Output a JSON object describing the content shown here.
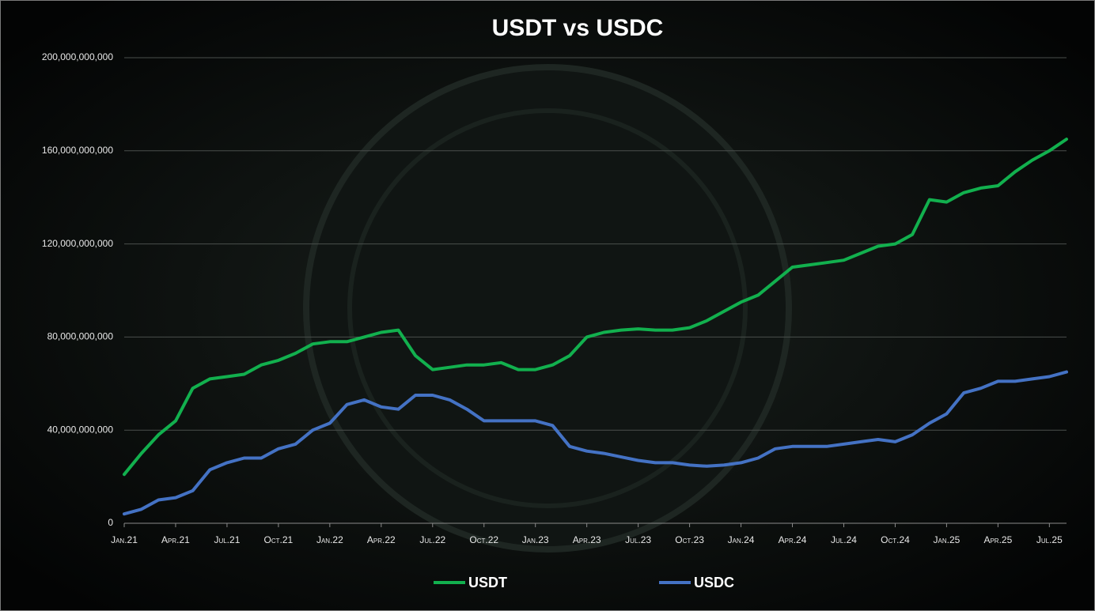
{
  "chart_data": {
    "type": "line",
    "title": "USDT  vs  USDC",
    "categories": [
      "Jan.21",
      null,
      null,
      "Apr.21",
      null,
      null,
      "Jul.21",
      null,
      null,
      "Oct.21",
      null,
      null,
      "Jan.22",
      null,
      null,
      "Apr.22",
      null,
      null,
      "Jul.22",
      null,
      null,
      "Oct.22",
      null,
      null,
      "Jan.23",
      null,
      null,
      "Apr.23",
      null,
      null,
      "Jul.23",
      null,
      null,
      "Oct.23",
      null,
      null,
      "Jan.24",
      null,
      null,
      "Apr.24",
      null,
      null,
      "Jul.24",
      null,
      null,
      "Oct.24",
      null,
      null,
      "Jan.25",
      null,
      null,
      "Apr.25",
      null,
      null,
      "Jul.25",
      null
    ],
    "series": [
      {
        "name": "USDT",
        "color": "#12b04e",
        "values": [
          21000000000.0,
          30000000000.0,
          38000000000.0,
          44000000000.0,
          58000000000.0,
          62000000000.0,
          63000000000.0,
          64000000000.0,
          68000000000.0,
          70000000000.0,
          73000000000.0,
          77000000000.0,
          78000000000.0,
          78000000000.0,
          80000000000.0,
          82000000000.0,
          83000000000.0,
          72000000000.0,
          66000000000.0,
          67000000000.0,
          68000000000.0,
          68000000000.0,
          69000000000.0,
          66000000000.0,
          66000000000.0,
          68000000000.0,
          72000000000.0,
          80000000000.0,
          82000000000.0,
          83000000000.0,
          83500000000.0,
          83000000000.0,
          83000000000.0,
          84000000000.0,
          87000000000.0,
          91000000000.0,
          95000000000.0,
          98000000000.0,
          104000000000.0,
          110000000000.0,
          111000000000.0,
          112000000000.0,
          113000000000.0,
          116000000000.0,
          119000000000.0,
          120000000000.0,
          124000000000.0,
          139000000000.0,
          138000000000.0,
          142000000000.0,
          144000000000.0,
          145000000000.0,
          151000000000.0,
          156000000000.0,
          160000000000.0,
          165000000000.0
        ]
      },
      {
        "name": "USDC",
        "color": "#4472c4",
        "values": [
          4000000000.0,
          6000000000.0,
          10000000000.0,
          11000000000.0,
          14000000000.0,
          23000000000.0,
          26000000000.0,
          28000000000.0,
          28000000000.0,
          32000000000.0,
          34000000000.0,
          40000000000.0,
          43000000000.0,
          51000000000.0,
          53000000000.0,
          50000000000.0,
          49000000000.0,
          55000000000.0,
          55000000000.0,
          53000000000.0,
          49000000000.0,
          44000000000.0,
          44000000000.0,
          44000000000.0,
          44000000000.0,
          42000000000.0,
          33000000000.0,
          31000000000.0,
          30000000000.0,
          28500000000.0,
          27000000000.0,
          26000000000.0,
          26000000000.0,
          25000000000.0,
          24500000000.0,
          25000000000.0,
          26000000000.0,
          28000000000.0,
          32000000000.0,
          33000000000.0,
          33000000000.0,
          33000000000.0,
          34000000000.0,
          35000000000.0,
          36000000000.0,
          35000000000.0,
          38000000000.0,
          43000000000.0,
          47000000000.0,
          56000000000.0,
          58000000000.0,
          61000000000.0,
          61000000000.0,
          62000000000.0,
          63000000000.0,
          65000000000.0
        ]
      }
    ],
    "ylim": [
      0,
      200000000000
    ],
    "yticks": [
      0,
      {
        "value": 40000000000,
        "label": "40,000,000,000"
      },
      {
        "value": 80000000000,
        "label": "80,000,000,000"
      },
      {
        "value": 120000000000,
        "label": "120,000,000,000"
      },
      {
        "value": 160000000000,
        "label": "160,000,000,000"
      },
      {
        "value": 200000000000,
        "label": "200,000,000,000"
      }
    ],
    "grid": true
  }
}
